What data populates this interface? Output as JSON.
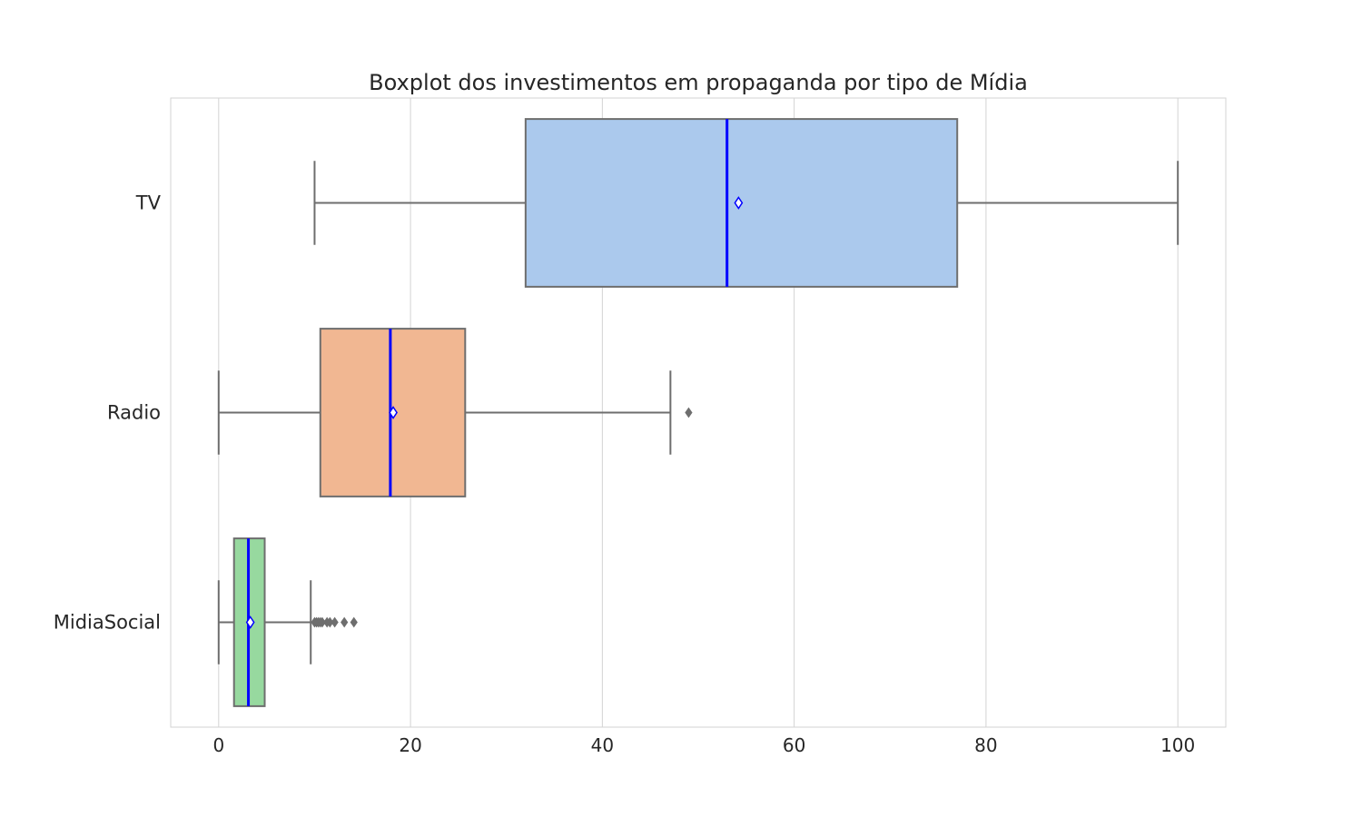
{
  "chart_data": {
    "type": "boxplot",
    "orientation": "horizontal",
    "title": "Boxplot dos investimentos em propaganda por tipo de Mídia",
    "xlabel": "",
    "ylabel": "",
    "xlim": [
      -5,
      105
    ],
    "x_ticks": [
      0,
      20,
      40,
      60,
      80,
      100
    ],
    "grid": "vertical",
    "categories": [
      "TV",
      "Radio",
      "MidiaSocial"
    ],
    "boxes": [
      {
        "category": "TV",
        "color": "#abc9ed",
        "whisker_low": 10,
        "q1": 32,
        "median": 53,
        "q3": 77,
        "whisker_high": 100,
        "mean": 54.2,
        "outliers": []
      },
      {
        "category": "Radio",
        "color": "#f1b792",
        "whisker_low": 0,
        "q1": 10.6,
        "median": 17.9,
        "q3": 25.7,
        "whisker_high": 47.1,
        "mean": 18.2,
        "outliers": [
          49
        ]
      },
      {
        "category": "MidiaSocial",
        "color": "#97d99f",
        "whisker_low": 0,
        "q1": 1.6,
        "median": 3.1,
        "q3": 4.8,
        "whisker_high": 9.6,
        "mean": 3.3,
        "outliers": [
          10,
          10.2,
          10.4,
          10.6,
          10.8,
          11.3,
          11.6,
          12.1,
          13.1,
          14.1
        ]
      }
    ],
    "median_color": "#0000ff",
    "mean_marker": "diamond",
    "mean_marker_edge": "#0000ff",
    "line_color": "#6e6e6e",
    "grid_color": "#d3d3d3"
  }
}
